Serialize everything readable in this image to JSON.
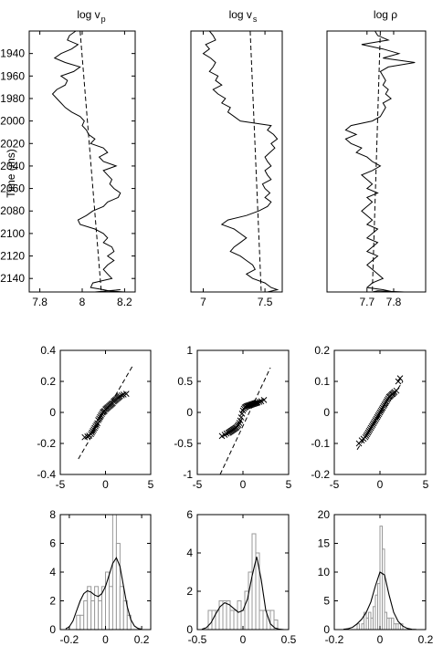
{
  "chart_data": [
    {
      "type": "line",
      "title": "log v",
      "title_sub": "p",
      "ylabel": "Time (ms)",
      "xlim": [
        7.75,
        8.25
      ],
      "ylim": [
        1920,
        2152
      ],
      "y_reversed": true,
      "xticks": [
        7.8,
        8,
        8.2
      ],
      "yticks": [
        1940,
        1960,
        1980,
        2000,
        2020,
        2040,
        2060,
        2080,
        2100,
        2120,
        2140
      ],
      "series": [
        {
          "style": "solid",
          "x": [
            7.97,
            7.94,
            7.93,
            7.98,
            7.95,
            7.9,
            7.87,
            7.92,
            7.99,
            7.96,
            7.9,
            7.93,
            7.92,
            7.88,
            7.86,
            7.88,
            7.9,
            7.92,
            7.95,
            7.99,
            8.01,
            8.0,
            8.02,
            8.03,
            8.06,
            8.04,
            8.1,
            8.12,
            8.08,
            8.1,
            8.16,
            8.1,
            8.12,
            8.14,
            8.13,
            8.15,
            8.18,
            8.17,
            8.12,
            8.1,
            8.05,
            8.02,
            7.98,
            7.99,
            8.06,
            8.1,
            8.12,
            8.1,
            8.14,
            8.15,
            8.12,
            8.15,
            8.12,
            8.1,
            8.12,
            8.14,
            8.05,
            8.04,
            8.1,
            8.15,
            8.2,
            8.12,
            8.18,
            8.06
          ],
          "y": [
            1920,
            1924,
            1928,
            1932,
            1936,
            1940,
            1944,
            1948,
            1952,
            1956,
            1960,
            1964,
            1968,
            1972,
            1976,
            1980,
            1984,
            1988,
            1992,
            1996,
            2000,
            2004,
            2008,
            2012,
            2016,
            2020,
            2024,
            2028,
            2032,
            2036,
            2040,
            2044,
            2048,
            2052,
            2056,
            2060,
            2064,
            2068,
            2072,
            2076,
            2080,
            2084,
            2088,
            2092,
            2096,
            2100,
            2104,
            2108,
            2112,
            2116,
            2120,
            2124,
            2128,
            2132,
            2136,
            2140,
            2144,
            2148,
            2150,
            2152,
            2152,
            2151,
            2150,
            2152
          ]
        },
        {
          "style": "dashed",
          "x": [
            7.99,
            8.09
          ],
          "y": [
            1920,
            2152
          ]
        }
      ]
    },
    {
      "type": "line",
      "title": "log v",
      "title_sub": "s",
      "xlim": [
        6.9,
        7.64
      ],
      "ylim": [
        1920,
        2152
      ],
      "y_reversed": true,
      "xticks": [
        7,
        7.5
      ],
      "yticks": [],
      "series": [
        {
          "style": "solid",
          "x": [
            7.05,
            7.08,
            7.1,
            7.02,
            7.05,
            7.0,
            7.06,
            7.1,
            7.08,
            7.05,
            7.12,
            7.1,
            7.15,
            7.08,
            7.12,
            7.18,
            7.15,
            7.22,
            7.2,
            7.25,
            7.3,
            7.55,
            7.52,
            7.57,
            7.6,
            7.55,
            7.58,
            7.54,
            7.5,
            7.52,
            7.55,
            7.5,
            7.52,
            7.55,
            7.48,
            7.5,
            7.54,
            7.5,
            7.55,
            7.52,
            7.45,
            7.35,
            7.2,
            7.15,
            7.25,
            7.3,
            7.35,
            7.3,
            7.25,
            7.22,
            7.3,
            7.35,
            7.4,
            7.42,
            7.35,
            7.4,
            7.5,
            7.55,
            7.6,
            7.52,
            7.5
          ],
          "y": [
            1920,
            1924,
            1928,
            1932,
            1936,
            1940,
            1944,
            1948,
            1952,
            1956,
            1960,
            1964,
            1968,
            1972,
            1976,
            1980,
            1984,
            1988,
            1992,
            1996,
            2000,
            2004,
            2008,
            2012,
            2016,
            2020,
            2024,
            2028,
            2032,
            2036,
            2040,
            2044,
            2048,
            2052,
            2056,
            2060,
            2064,
            2068,
            2072,
            2076,
            2080,
            2084,
            2088,
            2092,
            2096,
            2100,
            2104,
            2108,
            2112,
            2116,
            2120,
            2124,
            2128,
            2132,
            2136,
            2140,
            2144,
            2148,
            2150,
            2152,
            2152
          ]
        },
        {
          "style": "dashed",
          "x": [
            7.38,
            7.47
          ],
          "y": [
            1920,
            2152
          ]
        }
      ]
    },
    {
      "type": "line",
      "title": "log ρ",
      "xlim": [
        7.55,
        7.92
      ],
      "ylim": [
        1920,
        2152
      ],
      "y_reversed": true,
      "xticks": [
        7.7,
        7.8
      ],
      "yticks": [],
      "series": [
        {
          "style": "solid",
          "x": [
            7.73,
            7.74,
            7.78,
            7.68,
            7.76,
            7.82,
            7.76,
            7.88,
            7.78,
            7.75,
            7.76,
            7.77,
            7.76,
            7.78,
            7.77,
            7.79,
            7.76,
            7.77,
            7.76,
            7.75,
            7.72,
            7.64,
            7.62,
            7.66,
            7.62,
            7.64,
            7.68,
            7.66,
            7.7,
            7.72,
            7.75,
            7.72,
            7.68,
            7.7,
            7.72,
            7.7,
            7.74,
            7.7,
            7.72,
            7.7,
            7.68,
            7.7,
            7.72,
            7.7,
            7.74,
            7.72,
            7.7,
            7.74,
            7.72,
            7.7,
            7.74,
            7.72,
            7.7,
            7.72,
            7.74,
            7.76,
            7.72,
            7.7,
            7.76,
            7.8,
            7.84,
            7.74,
            7.72
          ],
          "y": [
            1920,
            1924,
            1928,
            1932,
            1936,
            1940,
            1944,
            1948,
            1952,
            1956,
            1960,
            1964,
            1968,
            1972,
            1976,
            1980,
            1984,
            1988,
            1992,
            1996,
            2000,
            2004,
            2008,
            2012,
            2016,
            2020,
            2024,
            2028,
            2032,
            2036,
            2040,
            2044,
            2048,
            2052,
            2056,
            2060,
            2064,
            2068,
            2072,
            2076,
            2080,
            2084,
            2088,
            2092,
            2096,
            2100,
            2104,
            2108,
            2112,
            2116,
            2120,
            2124,
            2128,
            2132,
            2136,
            2140,
            2144,
            2148,
            2150,
            2152,
            2152,
            2151,
            2152
          ]
        },
        {
          "style": "dashed",
          "x": [
            7.75,
            7.72
          ],
          "y": [
            1920,
            2152
          ]
        }
      ]
    },
    {
      "type": "scatter",
      "marker": "x",
      "xlim": [
        -5,
        5
      ],
      "ylim": [
        -0.4,
        0.4
      ],
      "xticks": [
        -5,
        0,
        5
      ],
      "yticks": [
        -0.4,
        -0.2,
        0,
        0.2,
        0.4
      ],
      "ref_line": {
        "x": [
          -3,
          3
        ],
        "y": [
          -0.3,
          0.3
        ]
      },
      "series": [
        {
          "x": [
            -2.3,
            -2.0,
            -1.8,
            -1.6,
            -1.5,
            -1.4,
            -1.3,
            -1.2,
            -1.1,
            -1.0,
            -0.9,
            -0.8,
            -0.7,
            -0.6,
            -0.5,
            -0.4,
            -0.3,
            -0.2,
            -0.1,
            0.0,
            0.1,
            0.2,
            0.3,
            0.4,
            0.5,
            0.6,
            0.7,
            0.8,
            0.9,
            1.0,
            1.1,
            1.2,
            1.3,
            1.4,
            1.5,
            1.6,
            1.8,
            2.0,
            2.3
          ],
          "y": [
            -0.16,
            -0.155,
            -0.15,
            -0.14,
            -0.13,
            -0.12,
            -0.11,
            -0.1,
            -0.09,
            -0.08,
            -0.07,
            -0.05,
            -0.04,
            -0.03,
            -0.02,
            -0.01,
            0.0,
            0.005,
            0.01,
            0.02,
            0.025,
            0.03,
            0.035,
            0.04,
            0.045,
            0.05,
            0.055,
            0.06,
            0.07,
            0.075,
            0.08,
            0.085,
            0.09,
            0.095,
            0.1,
            0.105,
            0.11,
            0.115,
            0.12
          ]
        }
      ]
    },
    {
      "type": "scatter",
      "marker": "x",
      "xlim": [
        -5,
        5
      ],
      "ylim": [
        -1,
        1
      ],
      "xticks": [
        -5,
        0,
        5
      ],
      "yticks": [
        -1,
        -0.5,
        0,
        0.5,
        1
      ],
      "ref_line": {
        "x": [
          -2.5,
          3
        ],
        "y": [
          -1,
          0.72
        ]
      },
      "series": [
        {
          "x": [
            -2.3,
            -2.0,
            -1.8,
            -1.6,
            -1.5,
            -1.4,
            -1.3,
            -1.2,
            -1.1,
            -1.0,
            -0.9,
            -0.8,
            -0.7,
            -0.6,
            -0.5,
            -0.4,
            -0.3,
            -0.2,
            -0.1,
            0.0,
            0.1,
            0.2,
            0.3,
            0.4,
            0.5,
            0.6,
            0.7,
            0.8,
            0.9,
            1.0,
            1.1,
            1.2,
            1.3,
            1.4,
            1.5,
            1.6,
            1.8,
            2.0,
            2.3
          ],
          "y": [
            -0.38,
            -0.36,
            -0.34,
            -0.33,
            -0.32,
            -0.31,
            -0.3,
            -0.29,
            -0.28,
            -0.27,
            -0.26,
            -0.25,
            -0.24,
            -0.22,
            -0.2,
            -0.17,
            -0.13,
            -0.08,
            -0.02,
            0.03,
            0.06,
            0.08,
            0.09,
            0.1,
            0.105,
            0.11,
            0.115,
            0.12,
            0.125,
            0.13,
            0.135,
            0.14,
            0.145,
            0.15,
            0.155,
            0.16,
            0.17,
            0.18,
            0.2
          ]
        }
      ]
    },
    {
      "type": "scatter",
      "marker": "x",
      "xlim": [
        -5,
        5
      ],
      "ylim": [
        -0.2,
        0.2
      ],
      "xticks": [
        -5,
        0,
        5
      ],
      "yticks": [
        -0.2,
        -0.1,
        0,
        0.1,
        0.2
      ],
      "ref_line": {
        "x": [
          -2.5,
          2.5
        ],
        "y": [
          -0.12,
          0.1
        ]
      },
      "series": [
        {
          "x": [
            -2.3,
            -2.0,
            -1.8,
            -1.6,
            -1.5,
            -1.4,
            -1.3,
            -1.2,
            -1.1,
            -1.0,
            -0.9,
            -0.8,
            -0.7,
            -0.6,
            -0.5,
            -0.4,
            -0.3,
            -0.2,
            -0.1,
            0.0,
            0.1,
            0.2,
            0.3,
            0.4,
            0.5,
            0.6,
            0.7,
            0.8,
            0.9,
            1.0,
            1.1,
            1.2,
            1.3,
            1.4,
            1.5,
            1.6,
            1.8,
            2.0,
            2.2
          ],
          "y": [
            -0.1,
            -0.09,
            -0.085,
            -0.08,
            -0.075,
            -0.07,
            -0.065,
            -0.06,
            -0.055,
            -0.05,
            -0.045,
            -0.04,
            -0.035,
            -0.03,
            -0.025,
            -0.02,
            -0.015,
            -0.01,
            -0.005,
            0.0,
            0.005,
            0.01,
            0.015,
            0.02,
            0.025,
            0.03,
            0.035,
            0.04,
            0.045,
            0.05,
            0.052,
            0.055,
            0.058,
            0.06,
            0.063,
            0.066,
            0.07,
            0.1,
            0.11
          ]
        }
      ]
    },
    {
      "type": "bar",
      "overlay": "line",
      "xlim": [
        -0.25,
        0.25
      ],
      "ylim": [
        0,
        8
      ],
      "xticks": [
        -0.2,
        0,
        0.2
      ],
      "yticks": [
        0,
        2,
        4,
        6,
        8
      ],
      "bins": {
        "width": 0.02,
        "centers": [
          -0.15,
          -0.13,
          -0.11,
          -0.09,
          -0.07,
          -0.05,
          -0.03,
          -0.01,
          0.01,
          0.03,
          0.05,
          0.07,
          0.09,
          0.11,
          0.13
        ],
        "counts": [
          1,
          1,
          2,
          3,
          2,
          3,
          2,
          3,
          4,
          3,
          8,
          6,
          3,
          2,
          1
        ]
      },
      "density": {
        "x": [
          -0.22,
          -0.2,
          -0.18,
          -0.16,
          -0.14,
          -0.12,
          -0.1,
          -0.08,
          -0.06,
          -0.04,
          -0.02,
          0.0,
          0.02,
          0.04,
          0.06,
          0.08,
          0.1,
          0.12,
          0.14,
          0.16,
          0.18,
          0.2
        ],
        "y": [
          0.05,
          0.2,
          0.6,
          1.3,
          2.0,
          2.5,
          2.7,
          2.6,
          2.4,
          2.3,
          2.5,
          3.0,
          3.8,
          4.6,
          5.0,
          4.4,
          3.0,
          1.6,
          0.7,
          0.25,
          0.08,
          0.02
        ]
      }
    },
    {
      "type": "bar",
      "overlay": "line",
      "xlim": [
        -0.5,
        0.5
      ],
      "ylim": [
        0,
        6
      ],
      "xticks": [
        -0.5,
        0,
        0.5
      ],
      "yticks": [
        0,
        2,
        4,
        6
      ],
      "bins": {
        "width": 0.04,
        "centers": [
          -0.36,
          -0.32,
          -0.28,
          -0.24,
          -0.2,
          -0.16,
          -0.12,
          -0.08,
          -0.04,
          0.0,
          0.04,
          0.08,
          0.12,
          0.16,
          0.2,
          0.24,
          0.28,
          0.32,
          0.36
        ],
        "counts": [
          1,
          1,
          1,
          1.5,
          1.5,
          1.5,
          1,
          1,
          1.5,
          1,
          2,
          3,
          5,
          4,
          1,
          1,
          1,
          1,
          0.5
        ]
      },
      "density": {
        "x": [
          -0.45,
          -0.4,
          -0.35,
          -0.3,
          -0.25,
          -0.2,
          -0.15,
          -0.1,
          -0.05,
          0.0,
          0.05,
          0.1,
          0.15,
          0.2,
          0.25,
          0.3,
          0.35,
          0.4,
          0.45
        ],
        "y": [
          0.02,
          0.1,
          0.35,
          0.8,
          1.2,
          1.4,
          1.3,
          1.1,
          0.9,
          1.0,
          1.6,
          2.8,
          3.8,
          2.6,
          1.0,
          0.3,
          0.08,
          0.02,
          0.0
        ]
      }
    },
    {
      "type": "bar",
      "overlay": "line",
      "xlim": [
        -0.2,
        0.2
      ],
      "ylim": [
        0,
        20
      ],
      "xticks": [
        -0.2,
        0,
        0.2
      ],
      "yticks": [
        0,
        5,
        10,
        15,
        20
      ],
      "bins": {
        "width": 0.01,
        "centers": [
          -0.095,
          -0.085,
          -0.075,
          -0.065,
          -0.055,
          -0.045,
          -0.035,
          -0.025,
          -0.015,
          -0.005,
          0.005,
          0.015,
          0.025,
          0.035,
          0.045,
          0.055,
          0.065,
          0.075,
          0.085,
          0.095
        ],
        "counts": [
          1,
          0,
          1,
          3,
          2,
          3,
          2,
          4,
          6,
          8,
          18,
          14,
          3,
          2,
          2,
          2,
          1,
          1,
          1,
          1
        ]
      },
      "density": {
        "x": [
          -0.16,
          -0.14,
          -0.12,
          -0.1,
          -0.08,
          -0.06,
          -0.04,
          -0.02,
          0.0,
          0.02,
          0.04,
          0.06,
          0.08,
          0.1,
          0.12,
          0.14,
          0.16
        ],
        "y": [
          0.05,
          0.15,
          0.4,
          1.0,
          1.8,
          3.0,
          4.8,
          7.6,
          10.0,
          9.5,
          6.0,
          3.0,
          1.4,
          0.6,
          0.2,
          0.05,
          0.02
        ]
      }
    }
  ]
}
